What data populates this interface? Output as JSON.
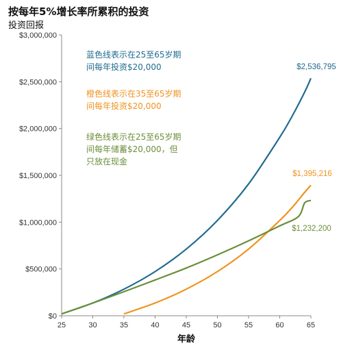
{
  "chart_data": {
    "type": "line",
    "title": "按每年5%增长率所累积的投资",
    "subtitle": "投资回报",
    "xlabel": "年龄",
    "ylabel": "",
    "xlim": [
      25,
      65
    ],
    "ylim": [
      0,
      3000000
    ],
    "x_ticks": [
      "25",
      "30",
      "35",
      "40",
      "45",
      "50",
      "55",
      "60",
      "65"
    ],
    "y_ticks": [
      "$0",
      "$500,000",
      "$1,000,000",
      "$1,500,000",
      "$2,000,000",
      "$2,500,000",
      "$3,000,000"
    ],
    "grid": false,
    "legend": "none",
    "series": [
      {
        "color": "#1f6b8f",
        "end_label": "$2,536,795",
        "x": [
          25,
          30,
          35,
          40,
          45,
          50,
          55,
          60,
          62,
          64,
          65
        ],
        "y": [
          20000,
          136000,
          284000,
          472000,
          712000,
          1018000,
          1408000,
          1906000,
          2133000,
          2389000,
          2536795
        ]
      },
      {
        "color": "#f0921e",
        "end_label": "$1,395,216",
        "x": [
          35,
          40,
          45,
          50,
          55,
          60,
          62,
          64,
          65
        ],
        "y": [
          20000,
          136000,
          284000,
          472000,
          712000,
          1018000,
          1157000,
          1318000,
          1395216
        ]
      },
      {
        "color": "#6b8e3a",
        "end_label": "$1,232,200",
        "x": [
          25,
          30,
          35,
          40,
          45,
          50,
          55,
          60,
          63,
          64,
          65
        ],
        "y": [
          20000,
          136000,
          257000,
          382000,
          510000,
          650000,
          800000,
          960000,
          1060000,
          1205000,
          1232200
        ]
      }
    ],
    "annotations": [
      {
        "color": "#1f6b8f",
        "lines": [
          "蓝色线表示在25至65岁期",
          "间每年投资$20,000"
        ]
      },
      {
        "color": "#f0921e",
        "lines": [
          "橙色线表示在35至65岁期",
          "间每年投资$20,000"
        ]
      },
      {
        "color": "#6b8e3a",
        "lines": [
          "绿色线表示在25至65岁期",
          "间每年储蓄$20,000，但",
          "只放在现金"
        ]
      }
    ]
  }
}
